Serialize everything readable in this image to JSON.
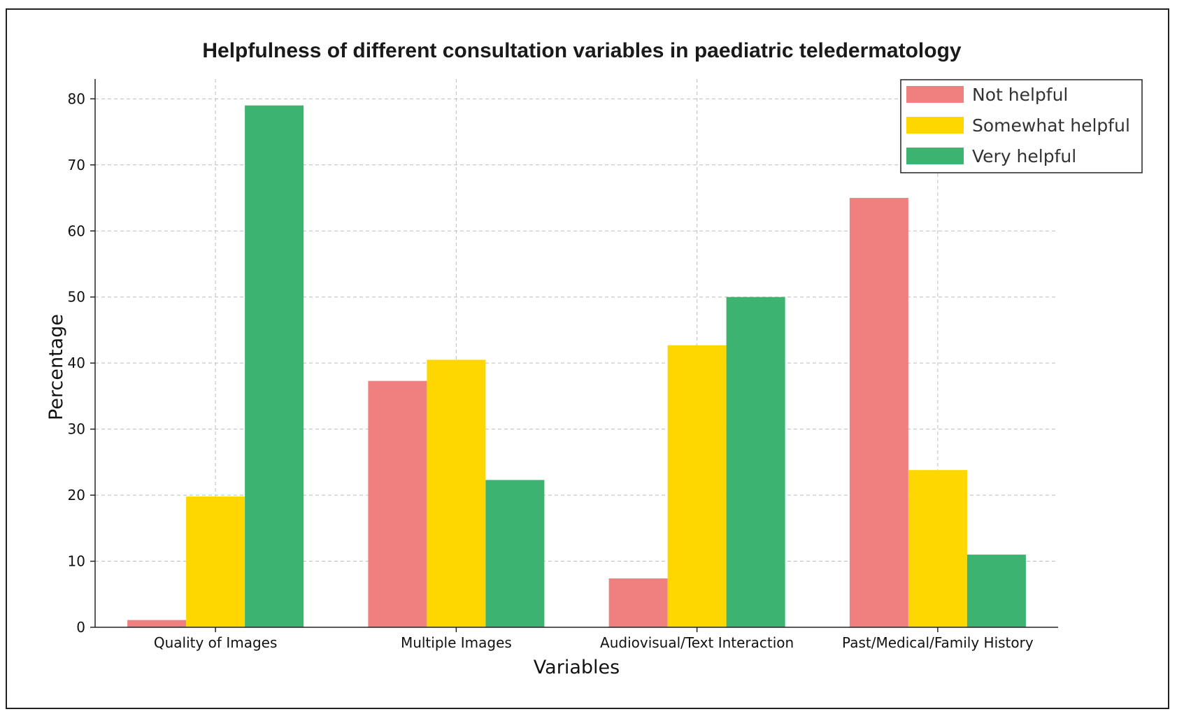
{
  "chart_data": {
    "type": "bar",
    "title": "Helpfulness of different consultation variables in paediatric teledermatology",
    "xlabel": "Variables",
    "ylabel": "Percentage",
    "ylim": [
      0,
      83
    ],
    "yticks": [
      0,
      10,
      20,
      30,
      40,
      50,
      60,
      70,
      80
    ],
    "grid": true,
    "legend_position": "top-right",
    "categories": [
      "Quality of Images",
      "Multiple Images",
      "Audiovisual/Text Interaction",
      "Past/Medical/Family History"
    ],
    "series": [
      {
        "name": "Not helpful",
        "color": "#F08080",
        "values": [
          1.1,
          37.3,
          7.4,
          65.0
        ]
      },
      {
        "name": "Somewhat helpful",
        "color": "#FFD700",
        "values": [
          19.8,
          40.5,
          42.7,
          23.8
        ]
      },
      {
        "name": "Very helpful",
        "color": "#3CB371",
        "values": [
          79.0,
          22.3,
          50.0,
          11.0
        ]
      }
    ]
  }
}
